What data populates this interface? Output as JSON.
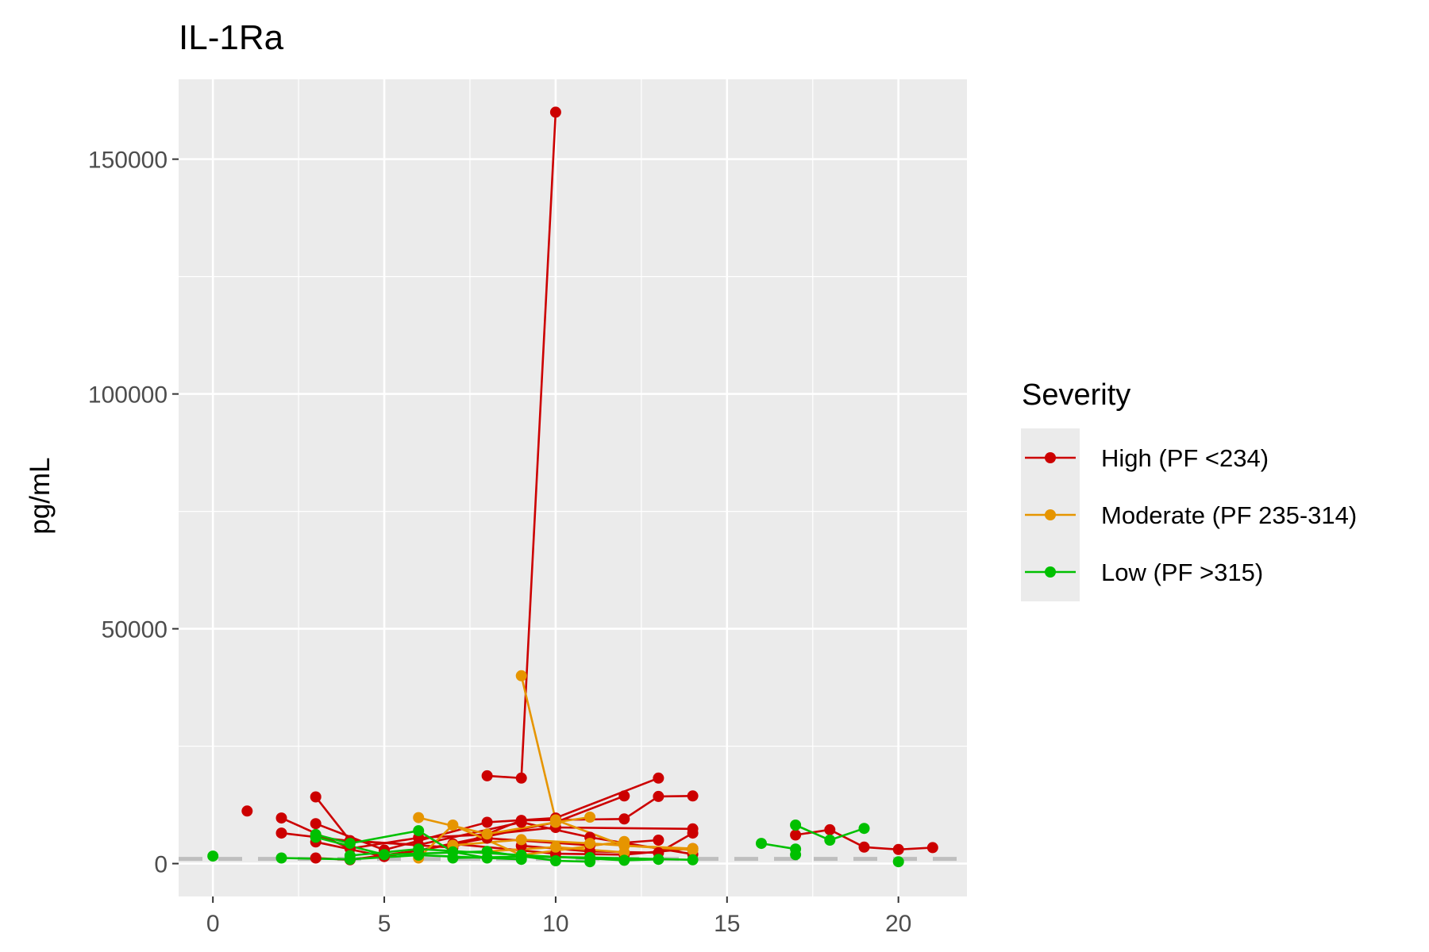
{
  "chart_data": {
    "type": "line",
    "title": "IL-1Ra",
    "xlabel": "",
    "ylabel": "pg/mL",
    "xlim": [
      -1,
      22
    ],
    "ylim": [
      -7000,
      167000
    ],
    "x_ticks": [
      0,
      5,
      10,
      15,
      20
    ],
    "y_ticks": [
      0,
      50000,
      100000,
      150000
    ],
    "x_tick_labels": [
      "0",
      "5",
      "10",
      "15",
      "20"
    ],
    "y_tick_labels": [
      "0",
      "50000",
      "100000",
      "150000"
    ],
    "reference_line": {
      "y": 1000,
      "style": "dashed",
      "color": "#bebebe"
    },
    "grid": true,
    "legend": {
      "title": "Severity",
      "position": "right",
      "entries": [
        "High (PF <234)",
        "Moderate (PF 235-314)",
        "Low (PF >315)"
      ]
    },
    "series": [
      {
        "name": "High (PF <234)",
        "color": "#cc0000",
        "trajectories": [
          [
            [
              1,
              11200
            ]
          ],
          [
            [
              2,
              9700
            ],
            [
              4,
              3200
            ],
            [
              6,
              5500
            ],
            [
              8,
              6200
            ],
            [
              10,
              7700
            ],
            [
              14,
              7400
            ]
          ],
          [
            [
              2,
              6500
            ],
            [
              4,
              4800
            ],
            [
              6,
              4000
            ],
            [
              9,
              8800
            ],
            [
              11,
              5600
            ],
            [
              14,
              2000
            ]
          ],
          [
            [
              3,
              14200
            ],
            [
              4,
              4900
            ],
            [
              7,
              3400
            ],
            [
              9,
              9200
            ],
            [
              12,
              9500
            ],
            [
              13,
              14300
            ],
            [
              14,
              14400
            ]
          ],
          [
            [
              3,
              8500
            ],
            [
              5,
              2900
            ],
            [
              8,
              8800
            ],
            [
              10,
              9700
            ],
            [
              13,
              18200
            ]
          ],
          [
            [
              3,
              4600
            ],
            [
              5,
              1500
            ],
            [
              8,
              5400
            ],
            [
              11,
              3900
            ],
            [
              13,
              5000
            ]
          ],
          [
            [
              3,
              1200
            ],
            [
              4,
              800
            ],
            [
              6,
              2800
            ],
            [
              10,
              8800
            ],
            [
              12,
              14400
            ]
          ],
          [
            [
              8,
              18700
            ],
            [
              9,
              18200
            ],
            [
              10,
              160000
            ]
          ],
          [
            [
              9,
              3800
            ],
            [
              11,
              2600
            ],
            [
              13,
              2300
            ],
            [
              14,
              6500
            ]
          ],
          [
            [
              7,
              4200
            ],
            [
              10,
              2100
            ],
            [
              12,
              1900
            ],
            [
              14,
              3200
            ]
          ],
          [
            [
              17,
              6100
            ],
            [
              18,
              7200
            ],
            [
              19,
              3500
            ],
            [
              20,
              3000
            ],
            [
              21,
              3400
            ]
          ]
        ]
      },
      {
        "name": "Moderate (PF 235-314)",
        "color": "#e69500",
        "trajectories": [
          [
            [
              6,
              9800
            ],
            [
              8,
              6300
            ],
            [
              10,
              8800
            ],
            [
              11,
              9900
            ]
          ],
          [
            [
              6,
              1200
            ],
            [
              7,
              8200
            ],
            [
              9,
              1800
            ],
            [
              12,
              4700
            ]
          ],
          [
            [
              9,
              40000
            ],
            [
              10,
              9300
            ],
            [
              12,
              3800
            ],
            [
              14,
              3200
            ]
          ],
          [
            [
              7,
              3900
            ],
            [
              9,
              5100
            ],
            [
              11,
              4300
            ],
            [
              14,
              2900
            ]
          ],
          [
            [
              8,
              2600
            ],
            [
              10,
              3500
            ],
            [
              12,
              2400
            ]
          ]
        ]
      },
      {
        "name": "Low (PF >315)",
        "color": "#00c000",
        "trajectories": [
          [
            [
              0,
              1600
            ]
          ],
          [
            [
              2,
              1200
            ],
            [
              4,
              900
            ],
            [
              6,
              1800
            ],
            [
              9,
              900
            ]
          ],
          [
            [
              3,
              6200
            ],
            [
              4,
              4300
            ],
            [
              6,
              7000
            ],
            [
              7,
              2500
            ],
            [
              8,
              1200
            ]
          ],
          [
            [
              3,
              5600
            ],
            [
              5,
              1900
            ],
            [
              8,
              2600
            ],
            [
              10,
              600
            ],
            [
              11,
              400
            ]
          ],
          [
            [
              4,
              1700
            ],
            [
              6,
              3100
            ],
            [
              9,
              1800
            ],
            [
              12,
              700
            ],
            [
              13,
              900
            ]
          ],
          [
            [
              7,
              1200
            ],
            [
              9,
              1500
            ],
            [
              11,
              1300
            ],
            [
              14,
              800
            ]
          ],
          [
            [
              16,
              4300
            ],
            [
              17,
              3100
            ]
          ],
          [
            [
              17,
              8200
            ],
            [
              18,
              5000
            ],
            [
              19,
              7500
            ]
          ],
          [
            [
              17,
              1900
            ]
          ],
          [
            [
              20,
              400
            ]
          ]
        ]
      }
    ]
  }
}
